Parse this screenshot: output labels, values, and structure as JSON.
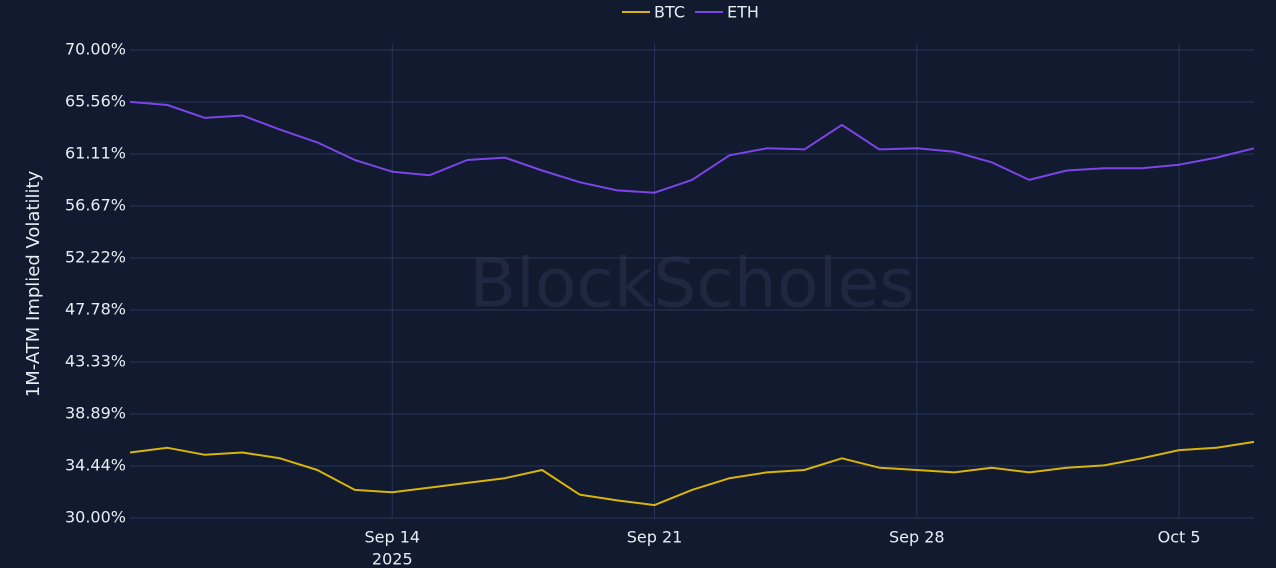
{
  "chart_data": {
    "type": "line",
    "y_axis_label": "1M-ATM Implied Volatility",
    "watermark": "BlockScholes",
    "x_year_label": "2025",
    "x": [
      "2025-09-07",
      "2025-09-08",
      "2025-09-09",
      "2025-09-10",
      "2025-09-11",
      "2025-09-12",
      "2025-09-13",
      "2025-09-14",
      "2025-09-15",
      "2025-09-16",
      "2025-09-17",
      "2025-09-18",
      "2025-09-19",
      "2025-09-20",
      "2025-09-21",
      "2025-09-22",
      "2025-09-23",
      "2025-09-24",
      "2025-09-25",
      "2025-09-26",
      "2025-09-27",
      "2025-09-28",
      "2025-09-29",
      "2025-09-30",
      "2025-10-01",
      "2025-10-02",
      "2025-10-03",
      "2025-10-04",
      "2025-10-05",
      "2025-10-06",
      "2025-10-07"
    ],
    "series": [
      {
        "name": "BTC",
        "color": "#d9b40c",
        "values": [
          35.6,
          36.0,
          35.4,
          35.6,
          35.1,
          34.1,
          32.4,
          32.2,
          32.6,
          33.0,
          33.4,
          34.1,
          32.0,
          31.5,
          31.1,
          32.4,
          33.4,
          33.9,
          34.1,
          35.1,
          34.3,
          34.1,
          33.9,
          34.3,
          33.9,
          34.3,
          34.5,
          35.1,
          35.8,
          36.0,
          36.5
        ]
      },
      {
        "name": "ETH",
        "color": "#7b45e8",
        "values": [
          65.56,
          65.3,
          64.2,
          64.4,
          63.2,
          62.1,
          60.6,
          59.6,
          59.3,
          60.6,
          60.8,
          59.7,
          58.7,
          58.0,
          57.8,
          58.9,
          61.0,
          61.6,
          61.5,
          63.6,
          61.5,
          61.6,
          61.3,
          60.4,
          58.9,
          59.7,
          59.9,
          59.9,
          60.2,
          60.8,
          61.6
        ]
      }
    ],
    "xlim": [
      "2025-09-07",
      "2025-10-07"
    ],
    "xticks": [
      {
        "value": "2025-09-14",
        "label": "Sep 14"
      },
      {
        "value": "2025-09-21",
        "label": "Sep 21"
      },
      {
        "value": "2025-09-28",
        "label": "Sep 28"
      },
      {
        "value": "2025-10-05",
        "label": "Oct 5"
      }
    ],
    "ylim": [
      30,
      70
    ],
    "yticks": [
      {
        "value": 30,
        "label": "30.00%"
      },
      {
        "value": 34.44,
        "label": "34.44%"
      },
      {
        "value": 38.89,
        "label": "38.89%"
      },
      {
        "value": 43.33,
        "label": "43.33%"
      },
      {
        "value": 47.78,
        "label": "47.78%"
      },
      {
        "value": 52.22,
        "label": "52.22%"
      },
      {
        "value": 56.67,
        "label": "56.67%"
      },
      {
        "value": 61.11,
        "label": "61.11%"
      },
      {
        "value": 65.56,
        "label": "65.56%"
      },
      {
        "value": 70,
        "label": "70.00%"
      }
    ],
    "grid": true,
    "legend": "top"
  }
}
